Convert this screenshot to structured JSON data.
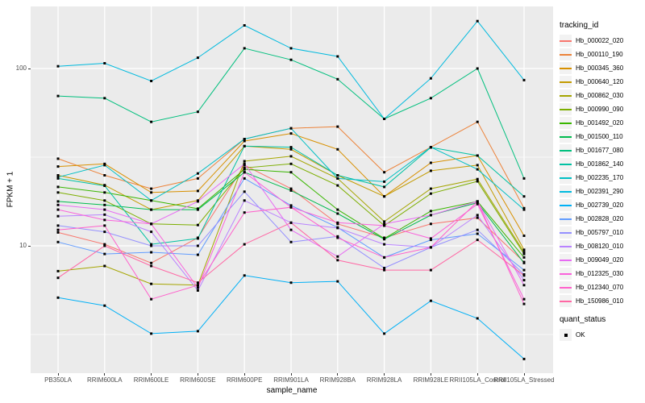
{
  "labels": {
    "y_axis": "FPKM + 1",
    "x_axis": "sample_name",
    "legend_title": "tracking_id",
    "quant_title": "quant_status",
    "quant_ok": "OK"
  },
  "style": {
    "background": "#FFFFFF",
    "panel_bg": "#EBEBEB",
    "grid_color": "#FFFFFF",
    "axis_text_color": "#4D4D4D",
    "tick_color": "#333333",
    "marker_color": "#000000",
    "legend_key_bg": "#F2F2F2"
  },
  "chart_data": {
    "type": "line",
    "title": "",
    "xlabel": "sample_name",
    "ylabel": "FPKM + 1",
    "y_scale": "log10",
    "ylim": [
      1.9,
      220
    ],
    "y_ticks": [
      100,
      10
    ],
    "y_tick_labels": [
      "100",
      "10"
    ],
    "minor_gridlines_at": [
      31.623,
      3.1623
    ],
    "grid": true,
    "legend_position": "right",
    "marker": "square",
    "categories": [
      "PB350LA",
      "RRIM600LA",
      "RRIM600LE",
      "RRIM600SE",
      "RRIM600PE",
      "RRIM901LA",
      "RRIM928BA",
      "RRIM928LA",
      "RRIM928LE",
      "RRII105LA_Control",
      "RRII105LA_Stressed"
    ],
    "quant_status": {
      "title": "quant_status",
      "items": [
        "OK"
      ]
    },
    "series": [
      {
        "name": "Hb_000022_020",
        "color": "#F8766D",
        "values": [
          11.9,
          10.2,
          8.0,
          11.1,
          28.5,
          21.0,
          13.3,
          11.1,
          13.3,
          14.4,
          8.1
        ]
      },
      {
        "name": "Hb_000110_190",
        "color": "#EC8239",
        "values": [
          31.0,
          25.0,
          21.0,
          24.0,
          40.0,
          46.0,
          47.0,
          26.0,
          36.0,
          50.0,
          16.3
        ]
      },
      {
        "name": "Hb_000345_360",
        "color": "#D89000",
        "values": [
          28.0,
          29.0,
          20.0,
          20.4,
          39.0,
          43.0,
          35.0,
          19.0,
          29.4,
          32.3,
          11.4
        ]
      },
      {
        "name": "Hb_000640_120",
        "color": "#C39B00",
        "values": [
          25.0,
          22.0,
          16.0,
          18.0,
          36.5,
          35.0,
          25.0,
          19.0,
          26.5,
          28.5,
          9.5
        ]
      },
      {
        "name": "Hb_000862_030",
        "color": "#A5A500",
        "values": [
          7.2,
          7.7,
          6.1,
          6.0,
          30.0,
          32.0,
          24.0,
          13.7,
          21.0,
          23.8,
          9.2
        ]
      },
      {
        "name": "Hb_000990_090",
        "color": "#7CAE00",
        "values": [
          20.0,
          18.0,
          13.3,
          13.1,
          27.5,
          29.0,
          21.9,
          13.0,
          19.7,
          23.1,
          9.0
        ]
      },
      {
        "name": "Hb_001492_020",
        "color": "#39B600",
        "values": [
          21.5,
          20.0,
          18.0,
          16.2,
          27.0,
          26.0,
          16.0,
          11.0,
          15.7,
          17.8,
          8.6
        ]
      },
      {
        "name": "Hb_001500_110",
        "color": "#00BB4E",
        "values": [
          17.8,
          17.0,
          16.0,
          16.0,
          26.0,
          20.5,
          15.2,
          10.9,
          14.9,
          17.5,
          8.0
        ]
      },
      {
        "name": "Hb_001677_080",
        "color": "#00BF7D",
        "values": [
          70,
          68,
          50,
          57,
          130,
          112,
          87,
          52,
          68,
          100,
          24
        ]
      },
      {
        "name": "Hb_001862_140",
        "color": "#00C1A3",
        "values": [
          24.0,
          21.8,
          10.2,
          11.0,
          36.5,
          36.0,
          25.0,
          21.5,
          35.9,
          32.3,
          19.0
        ]
      },
      {
        "name": "Hb_002235_170",
        "color": "#00BFC4",
        "values": [
          24.4,
          28.5,
          18.0,
          25.6,
          40.0,
          46.0,
          24.0,
          23.0,
          36.0,
          27.0,
          16.0
        ]
      },
      {
        "name": "Hb_002391_290",
        "color": "#00BADE",
        "values": [
          103,
          107,
          85,
          115,
          175,
          130,
          117,
          52,
          88,
          185,
          86
        ]
      },
      {
        "name": "Hb_002739_020",
        "color": "#00B0F6",
        "values": [
          5.1,
          4.6,
          3.2,
          3.3,
          6.8,
          6.2,
          6.3,
          3.2,
          4.9,
          3.9,
          2.3
        ]
      },
      {
        "name": "Hb_002828_020",
        "color": "#619CFF",
        "values": [
          10.5,
          9.0,
          9.2,
          8.9,
          24.0,
          16.9,
          12.7,
          8.6,
          10.8,
          11.7,
          7.3
        ]
      },
      {
        "name": "Hb_005797_010",
        "color": "#9590FF",
        "values": [
          13.0,
          12.0,
          10.0,
          10.0,
          20.2,
          10.5,
          11.3,
          7.5,
          9.8,
          12.3,
          6.9
        ]
      },
      {
        "name": "Hb_008120_010",
        "color": "#B983FF",
        "values": [
          14.7,
          15.0,
          12.0,
          5.6,
          18.0,
          13.5,
          12.6,
          10.2,
          9.8,
          14.9,
          6.4
        ]
      },
      {
        "name": "Hb_009049_020",
        "color": "#E76BF3",
        "values": [
          17.0,
          16.0,
          13.3,
          17.8,
          29.0,
          12.3,
          8.7,
          13.3,
          14.9,
          17.8,
          6.0
        ]
      },
      {
        "name": "Hb_012325_030",
        "color": "#FA62DB",
        "values": [
          16.0,
          14.0,
          13.3,
          5.8,
          26.0,
          16.5,
          13.5,
          13.0,
          11.0,
          17.2,
          5.0
        ]
      },
      {
        "name": "Hb_012340_070",
        "color": "#FF61CC",
        "values": [
          12.3,
          13.0,
          5.0,
          6.0,
          15.4,
          16.5,
          11.1,
          8.6,
          9.8,
          17.8,
          4.7
        ]
      },
      {
        "name": "Hb_150986_010",
        "color": "#FF67A4",
        "values": [
          6.6,
          10.0,
          7.7,
          6.2,
          10.2,
          13.5,
          8.3,
          7.3,
          7.3,
          10.8,
          6.8
        ]
      }
    ]
  }
}
